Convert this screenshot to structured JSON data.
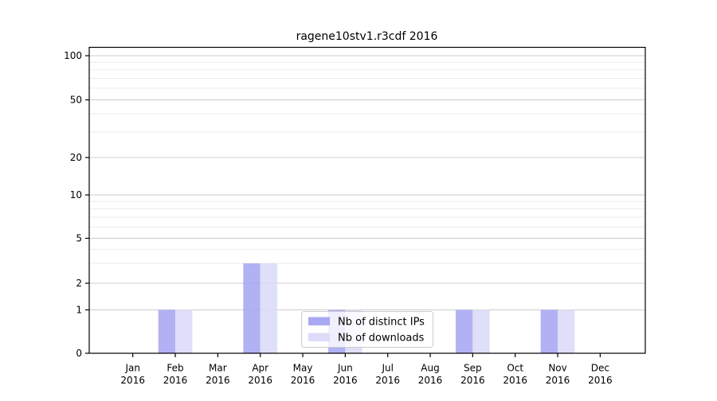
{
  "title": "ragene10stv1.r3cdf 2016",
  "chart_data": {
    "type": "bar",
    "title": "ragene10stv1.r3cdf 2016",
    "categories": [
      "Jan 2016",
      "Feb 2016",
      "Mar 2016",
      "Apr 2016",
      "May 2016",
      "Jun 2016",
      "Jul 2016",
      "Aug 2016",
      "Sep 2016",
      "Oct 2016",
      "Nov 2016",
      "Dec 2016"
    ],
    "series": [
      {
        "name": "Nb of distinct IPs",
        "color": "#a9a9f3",
        "values": [
          0,
          1,
          0,
          3,
          0,
          1,
          0,
          0,
          1,
          0,
          1,
          0
        ]
      },
      {
        "name": "Nb of downloads",
        "color": "#dcdcf8",
        "values": [
          0,
          1,
          0,
          3,
          0,
          1,
          0,
          0,
          1,
          0,
          1,
          0
        ]
      }
    ],
    "xlabel": "",
    "ylabel": "",
    "yscale": "symlog",
    "ylim": [
      0,
      100
    ],
    "y_ticks": [
      0,
      1,
      2,
      5,
      10,
      20,
      50,
      100
    ],
    "y_minor_ticks": [
      3,
      4,
      6,
      7,
      8,
      9,
      30,
      40,
      60,
      70,
      80,
      90
    ],
    "grid": true,
    "legend_position": "lower center"
  },
  "legend": {
    "items": [
      {
        "label": "Nb of distinct IPs",
        "color": "#a9a9f3"
      },
      {
        "label": "Nb of downloads",
        "color": "#dcdcf8"
      }
    ]
  },
  "colors": {
    "bar_distinct_ips": "#a9a9f3",
    "bar_downloads": "#dcdcf8",
    "grid_major": "#cccccc",
    "grid_minor": "#ebebeb",
    "axis": "#000000",
    "legend_border": "#cccccc"
  }
}
